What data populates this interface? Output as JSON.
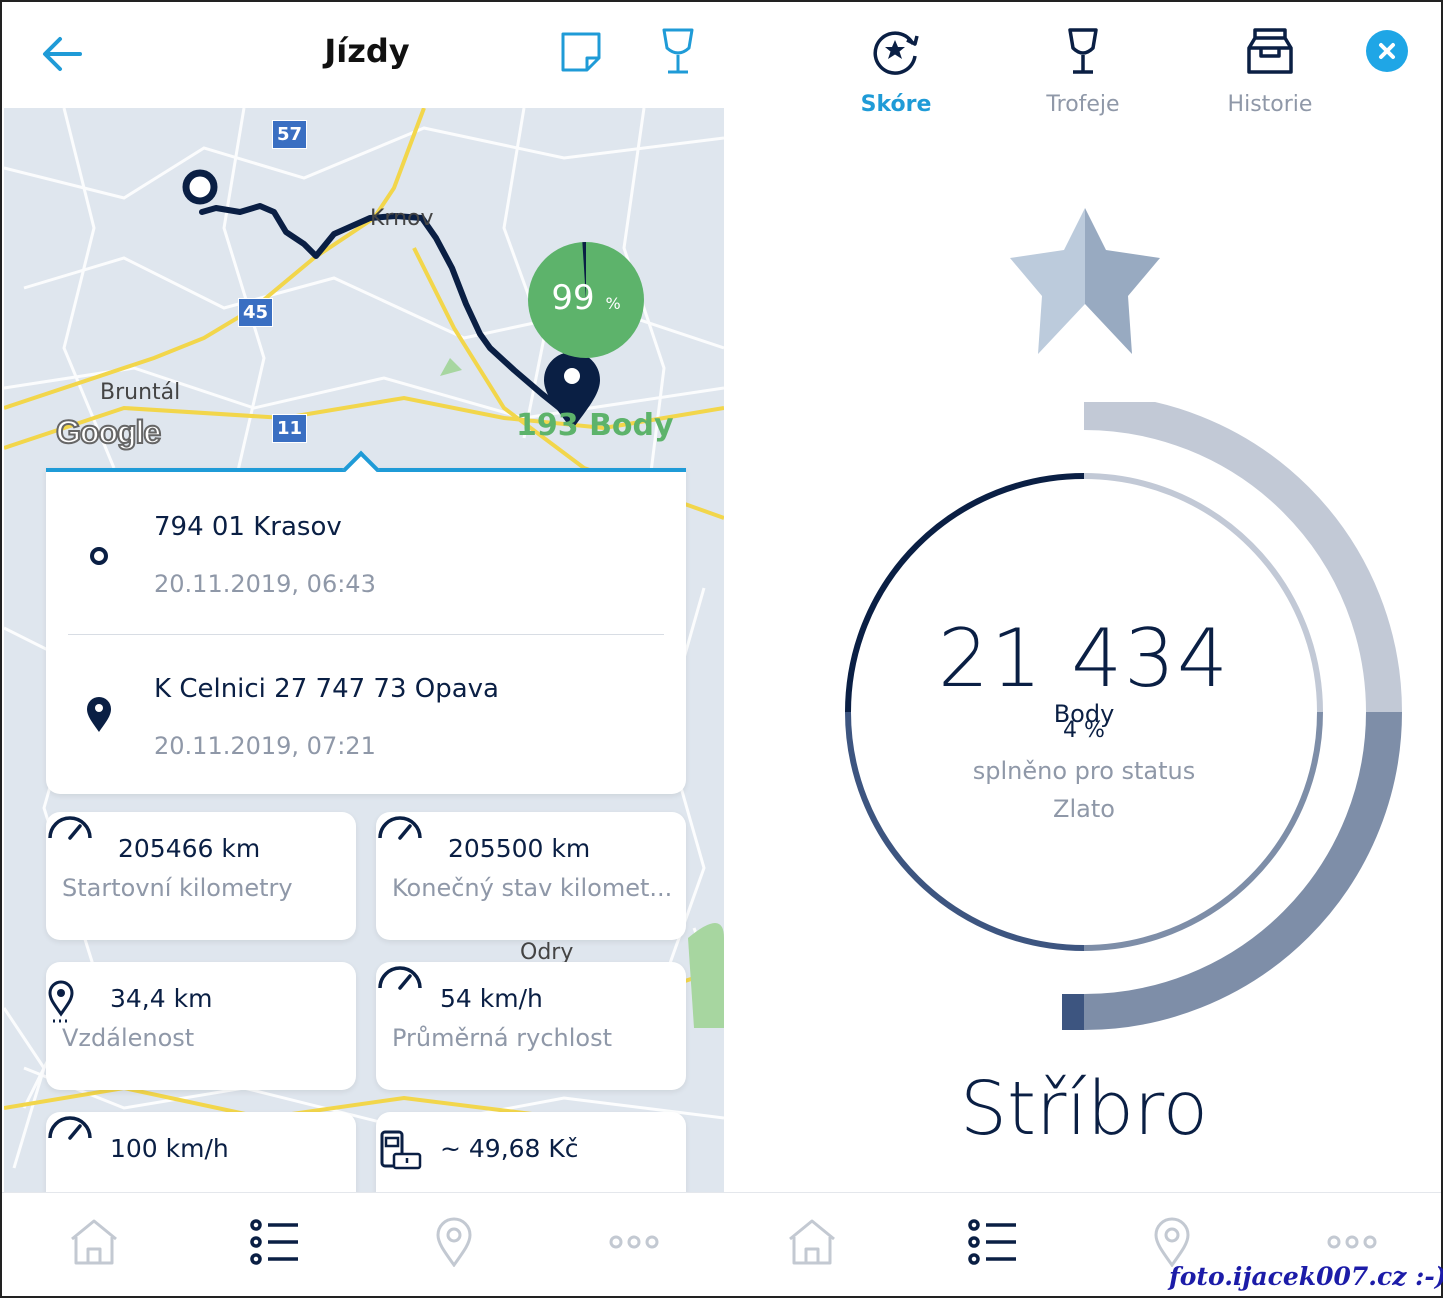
{
  "left": {
    "title": "Jízdy",
    "map": {
      "city_krnov": "Krnov",
      "city_bruntal": "Bruntál",
      "city_odry": "Odry",
      "road_57": "57",
      "road_45": "45",
      "road_11": "11",
      "google_logo": "Google",
      "score_percent": "99",
      "score_percent_sign": "%",
      "points": "193 Body",
      "score_fraction": 0.99
    },
    "route": {
      "start_address": "794 01 Krasov",
      "start_time": "20.11.2019, 06:43",
      "end_address": "K Celnici 27 747 73 Opava",
      "end_time": "20.11.2019, 07:21"
    },
    "stats": [
      {
        "value": "205466 km",
        "label": "Startovní kilometry",
        "icon": "speedometer-icon"
      },
      {
        "value": "205500 km",
        "label": "Konečný stav kilomet...",
        "icon": "speedometer-icon"
      },
      {
        "value": "34,4 km",
        "label": "Vzdálenost",
        "icon": "location-pin-icon"
      },
      {
        "value": "54 km/h",
        "label": "Průměrná rychlost",
        "icon": "speedometer-icon"
      },
      {
        "value": "100 km/h",
        "label": "",
        "icon": "speedometer-icon"
      },
      {
        "value": "~ 49,68 Kč",
        "label": "",
        "icon": "fuel-pump-icon"
      }
    ]
  },
  "right": {
    "tabs": [
      {
        "label": "Skóre",
        "active": true,
        "icon": "score-icon"
      },
      {
        "label": "Trofeje",
        "active": false,
        "icon": "trophy-icon"
      },
      {
        "label": "Historie",
        "active": false,
        "icon": "history-icon"
      }
    ],
    "score": "21 434",
    "score_unit": "Body",
    "progress": "4 %",
    "progress_fraction": 0.04,
    "status_line1": "splněno pro status",
    "status_line2": "Zlato",
    "level": "Stříbro"
  },
  "nav": [
    "home-icon",
    "list-icon",
    "map-pin-icon",
    "more-icon"
  ],
  "watermark": "foto.ijacek007.cz :-)",
  "colors": {
    "accent": "#1f9bd7",
    "navy": "#0a1f44",
    "green": "#5db36b",
    "gray_text": "#8f98a8"
  }
}
